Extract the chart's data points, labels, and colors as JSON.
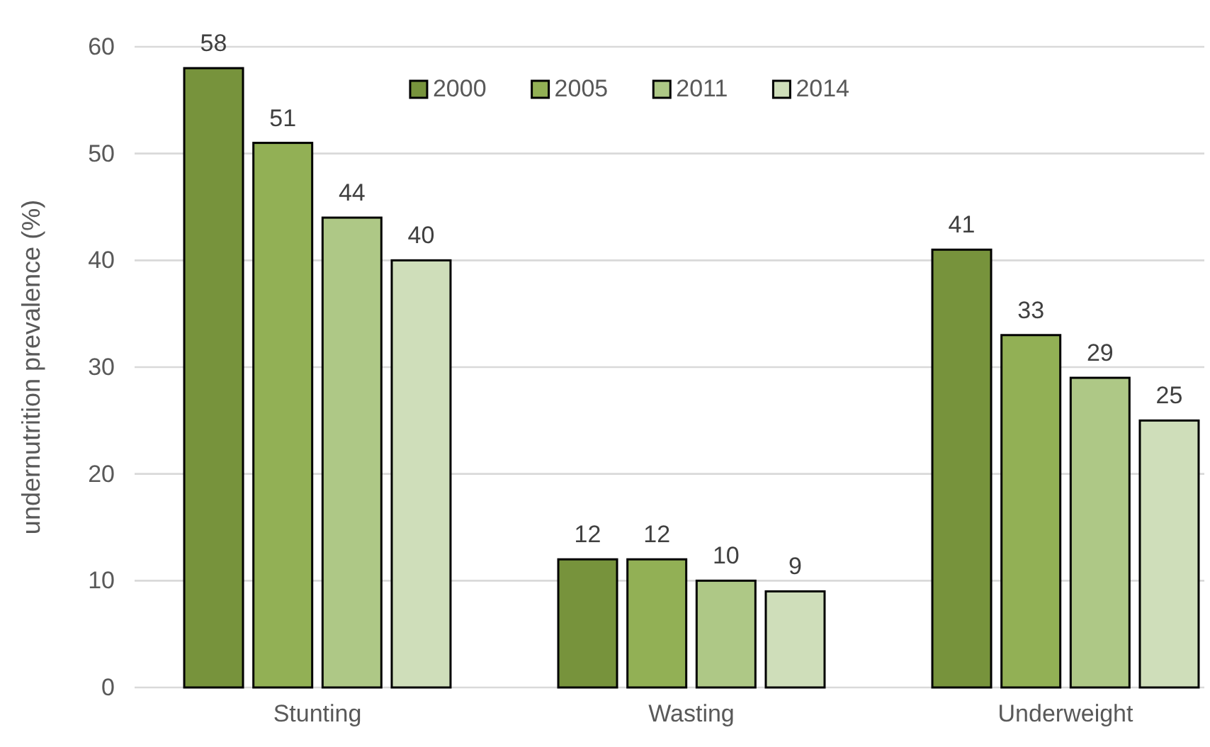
{
  "chart_data": {
    "type": "bar",
    "ylabel": "undernutrition prevalence (%)",
    "categories": [
      "Stunting",
      "Wasting",
      "Underweight"
    ],
    "series": [
      {
        "name": "2000",
        "color": "#77933c",
        "values": [
          58,
          12,
          41
        ]
      },
      {
        "name": "2005",
        "color": "#92b055",
        "values": [
          51,
          12,
          33
        ]
      },
      {
        "name": "2011",
        "color": "#aec886",
        "values": [
          44,
          10,
          29
        ]
      },
      {
        "name": "2014",
        "color": "#cfdeba",
        "values": [
          40,
          9,
          25
        ]
      }
    ],
    "ylim": [
      0,
      60
    ],
    "yticks": [
      0,
      10,
      20,
      30,
      40,
      50,
      60
    ],
    "grid": "y",
    "legend": "top",
    "data_labels": true
  }
}
